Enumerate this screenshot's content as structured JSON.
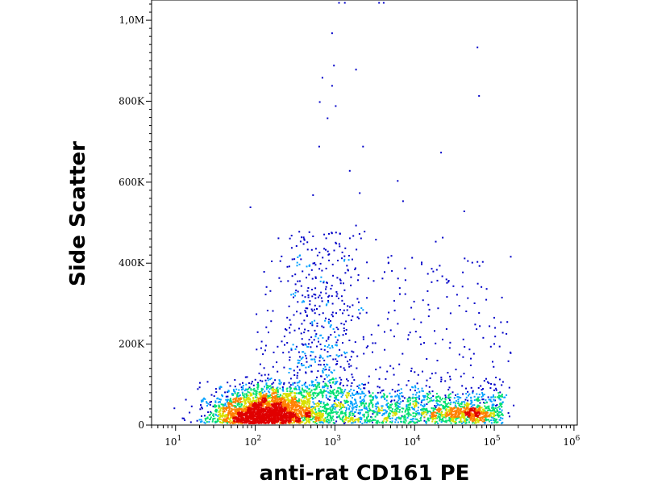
{
  "chart_data": {
    "type": "scatter",
    "xlabel": "anti-rat CD161 PE",
    "ylabel": "Side Scatter",
    "x_scale": "log",
    "xlim": [
      5,
      1100000
    ],
    "ylim": [
      0,
      1050000
    ],
    "y_ticks": [
      {
        "value": 0,
        "label": "0"
      },
      {
        "value": 200000,
        "label": "200K"
      },
      {
        "value": 400000,
        "label": "400K"
      },
      {
        "value": 600000,
        "label": "600K"
      },
      {
        "value": 800000,
        "label": "800K"
      },
      {
        "value": 1000000,
        "label": "1,0M"
      }
    ],
    "x_ticks": [
      {
        "value": 10,
        "base": "10",
        "exp": "1"
      },
      {
        "value": 100,
        "base": "10",
        "exp": "2"
      },
      {
        "value": 1000,
        "base": "10",
        "exp": "3"
      },
      {
        "value": 10000,
        "base": "10",
        "exp": "4"
      },
      {
        "value": 100000,
        "base": "10",
        "exp": "5"
      },
      {
        "value": 1000000,
        "base": "10",
        "exp": "6"
      }
    ],
    "grid": false,
    "color_scale": [
      "#0000c8",
      "#00a0ff",
      "#00e070",
      "#d8e000",
      "#ff8000",
      "#e00000"
    ],
    "outliers": [
      [
        900,
        970000
      ],
      [
        1100,
        1045000
      ],
      [
        1300,
        1045000
      ],
      [
        3500,
        1045000
      ],
      [
        4000,
        1045000
      ],
      [
        60000,
        935000
      ],
      [
        63000,
        815000
      ],
      [
        950,
        890000
      ],
      [
        1800,
        880000
      ],
      [
        680,
        860000
      ],
      [
        900,
        840000
      ],
      [
        630,
        800000
      ],
      [
        790,
        760000
      ],
      [
        1000,
        790000
      ],
      [
        2200,
        690000
      ],
      [
        620,
        690000
      ],
      [
        21000,
        675000
      ],
      [
        6000,
        605000
      ],
      [
        520,
        570000
      ],
      [
        1500,
        630000
      ],
      [
        2000,
        575000
      ],
      [
        7000,
        555000
      ],
      [
        41000,
        530000
      ],
      [
        85,
        540000
      ],
      [
        18000,
        455000
      ],
      [
        22000,
        465000
      ],
      [
        1800,
        495000
      ],
      [
        2300,
        480000
      ],
      [
        3200,
        460000
      ],
      [
        60000,
        405000
      ],
      [
        70000,
        405000
      ],
      [
        5000,
        420000
      ],
      [
        1900,
        360000
      ],
      [
        4100,
        380000
      ],
      [
        7500,
        360000
      ],
      [
        16000,
        355000
      ],
      [
        30000,
        345000
      ]
    ]
  }
}
